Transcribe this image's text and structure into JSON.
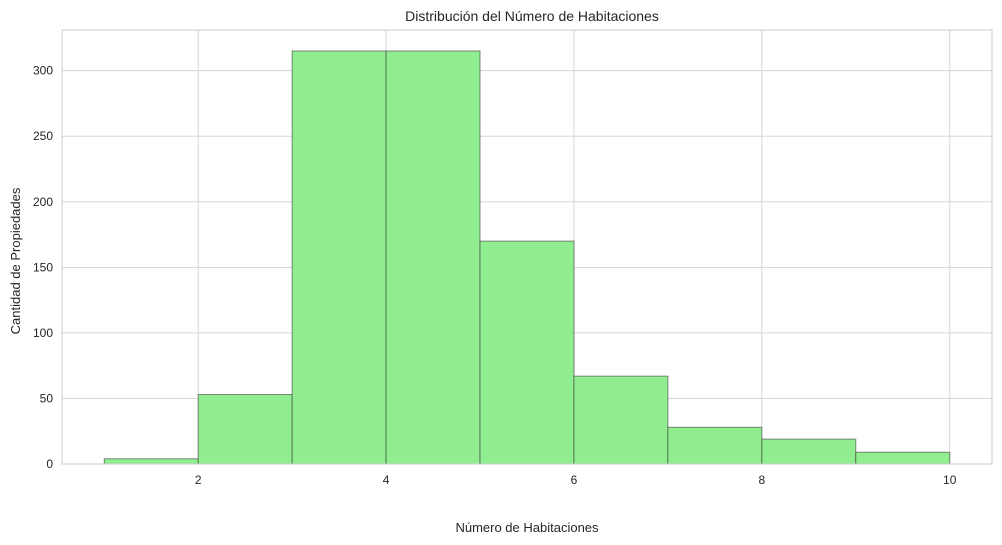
{
  "chart_data": {
    "type": "bar",
    "title": "Distribución del Número de Habitaciones",
    "xlabel": "Número de Habitaciones",
    "ylabel": "Cantidad de Propiedades",
    "bins": [
      {
        "start": 1,
        "end": 2,
        "count": 4
      },
      {
        "start": 2,
        "end": 3,
        "count": 53
      },
      {
        "start": 3,
        "end": 4,
        "count": 315
      },
      {
        "start": 4,
        "end": 5,
        "count": 315
      },
      {
        "start": 5,
        "end": 6,
        "count": 170
      },
      {
        "start": 6,
        "end": 7,
        "count": 67
      },
      {
        "start": 7,
        "end": 8,
        "count": 28
      },
      {
        "start": 8,
        "end": 9,
        "count": 19
      },
      {
        "start": 9,
        "end": 10,
        "count": 9
      }
    ],
    "xlim": [
      0.55,
      10.45
    ],
    "ylim": [
      0,
      331
    ],
    "xticks": [
      2,
      4,
      6,
      8,
      10
    ],
    "yticks": [
      0,
      50,
      100,
      150,
      200,
      250,
      300
    ],
    "grid": true,
    "legend": "none",
    "bar_color": "#90ee90",
    "edge_color": "#404040"
  }
}
